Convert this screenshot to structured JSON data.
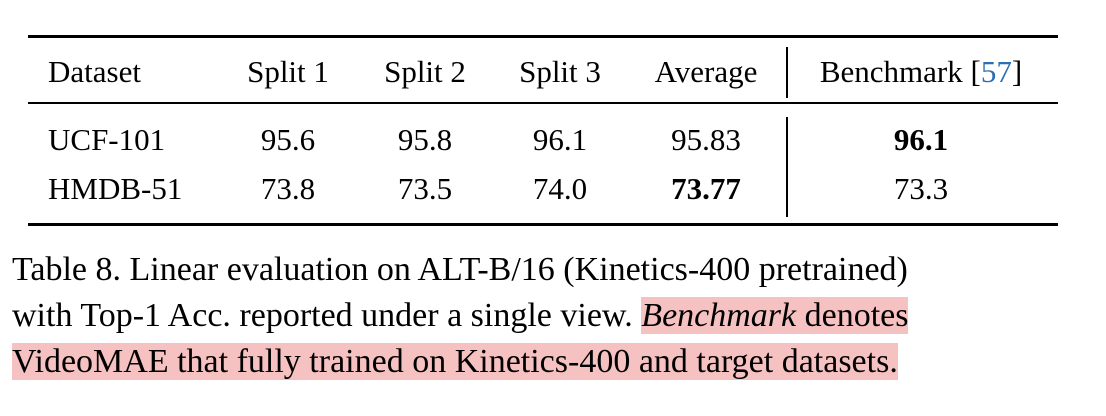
{
  "table": {
    "headers": [
      "Dataset",
      "Split 1",
      "Split 2",
      "Split 3",
      "Average"
    ],
    "benchmark_header": "Benchmark",
    "benchmark_ref_open": "[",
    "benchmark_ref": "57",
    "benchmark_ref_close": "]",
    "rows": [
      {
        "dataset": "UCF-101",
        "split1": "95.6",
        "split2": "95.8",
        "split3": "96.1",
        "average": "95.83",
        "benchmark": "96.1",
        "bold": "benchmark"
      },
      {
        "dataset": "HMDB-51",
        "split1": "73.8",
        "split2": "73.5",
        "split3": "74.0",
        "average": "73.77",
        "benchmark": "73.3",
        "bold": "average"
      }
    ]
  },
  "caption": {
    "line1": "Table 8. Linear evaluation on ALT-B/16 (Kinetics-400 pretrained)",
    "line2_plain": "with Top-1 Acc. reported under a single view. ",
    "line2_em": "Benchmark",
    "line2_tail": " denotes",
    "line3": "VideoMAE that fully trained on Kinetics-400 and target datasets."
  },
  "colors": {
    "highlight": "#f6c1c1",
    "citation": "#2a6fb5"
  }
}
